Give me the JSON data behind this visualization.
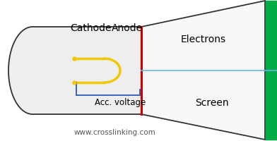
{
  "bg_color": "#ffffff",
  "beam_color": "#6ab4e8",
  "anode_color": "#cc0000",
  "cathode_color": "#f0c800",
  "acc_voltage_color": "#3366bb",
  "screen_color": "#00aa44",
  "outline_color": "#333333",
  "cathode_label": "Cathode",
  "anode_label": "Anode",
  "electrons_label": "Electrons",
  "screen_label": "Screen",
  "acc_voltage_label": "Acc. voltage",
  "website_label": "www.crosslinking.com",
  "label_fontsize": 10,
  "small_fontsize": 8.5
}
